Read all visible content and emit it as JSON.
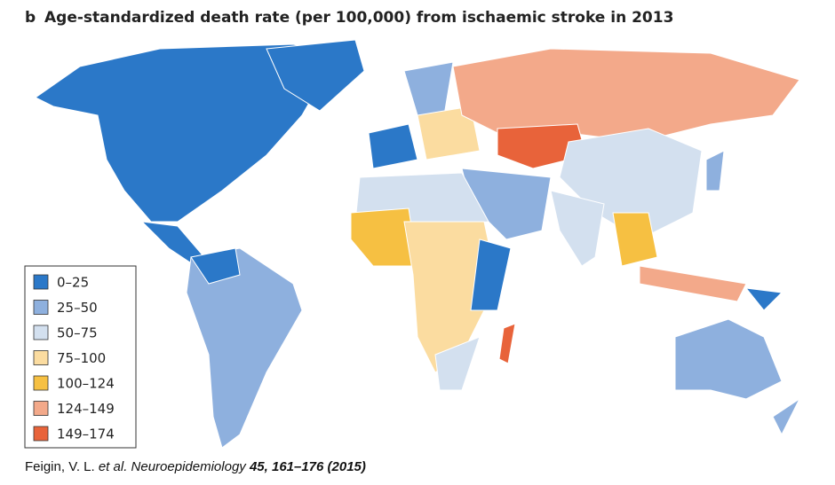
{
  "header": {
    "label": "b",
    "title": "Age-standardized death rate (per 100,000) from ischaemic stroke in 2013"
  },
  "legend": [
    {
      "label": "0–25",
      "color": "#2b78c8"
    },
    {
      "label": "25–50",
      "color": "#8eb0de"
    },
    {
      "label": "50–75",
      "color": "#d3e0ef"
    },
    {
      "label": "75–100",
      "color": "#fbdca0"
    },
    {
      "label": "100–124",
      "color": "#f6c042"
    },
    {
      "label": "124–149",
      "color": "#f3a98a"
    },
    {
      "label": "149–174",
      "color": "#e8633a"
    }
  ],
  "citation": {
    "authors": "Feigin, V. L. ",
    "etal": "et al.",
    "journal": " Neuroepidemiology ",
    "ref": "45, 161–176 (2015)"
  }
}
